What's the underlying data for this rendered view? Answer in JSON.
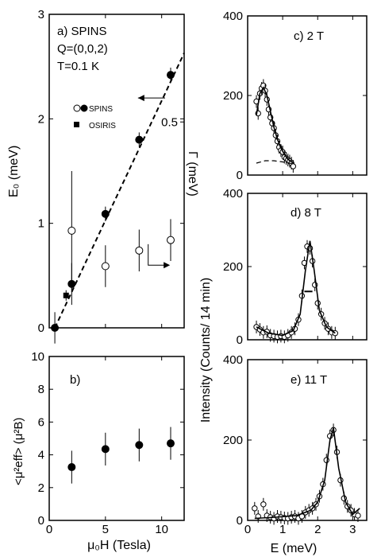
{
  "chart_data": [
    {
      "type": "scatter",
      "panel": "a",
      "annotations": [
        "a) SPINS",
        "Q=(0,0,2)",
        "T=0.1 K"
      ],
      "ylabel": "E₀ (meV)",
      "ylabel_right": "Γ (meV)",
      "ylim": [
        0,
        3
      ],
      "yticks": [
        "0",
        "1",
        "2",
        "3"
      ],
      "xlim": [
        0,
        12
      ],
      "xticks": [
        0,
        5,
        10
      ],
      "right_axis_ticks": [
        {
          "label": "0.5",
          "at_left_value": 1.97
        }
      ],
      "legend": [
        {
          "label": "SPINS",
          "markers": [
            "open-circle",
            "filled-circle"
          ]
        },
        {
          "label": "OSIRIS",
          "markers": [
            "filled-square"
          ]
        }
      ],
      "series": [
        {
          "marker": "filled-circle",
          "axis": "left",
          "points": [
            {
              "x": 0.5,
              "y": 0.0,
              "err": 0.15
            },
            {
              "x": 2,
              "y": 0.42,
              "err": 0.2
            },
            {
              "x": 5,
              "y": 1.09,
              "err": 0.07
            },
            {
              "x": 8,
              "y": 1.8,
              "err": 0.07
            },
            {
              "x": 10.8,
              "y": 2.42,
              "err": 0.07
            }
          ]
        },
        {
          "marker": "filled-square",
          "axis": "left",
          "points": [
            {
              "x": 1.5,
              "y": 0.31,
              "err": 0.05
            }
          ]
        },
        {
          "marker": "open-circle",
          "axis": "right",
          "points": [
            {
              "x": 2,
              "y": 0.93,
              "err": 0.57
            },
            {
              "x": 5,
              "y": 0.59,
              "err": 0.2
            },
            {
              "x": 8,
              "y": 0.74,
              "err": 0.2
            },
            {
              "x": 10.8,
              "y": 0.84,
              "err": 0.2
            }
          ]
        }
      ],
      "fit_line": {
        "style": "dashed",
        "x": [
          0.5,
          12
        ],
        "y": [
          0.0,
          2.63
        ]
      }
    },
    {
      "type": "scatter",
      "panel": "b",
      "annotations": [
        "b)"
      ],
      "ylabel": "<μ²eff> (μ²B)",
      "xlabel": "μ₀H (Tesla)",
      "ylim": [
        0,
        10
      ],
      "yticks": [
        "0",
        "2",
        "4",
        "6",
        "8",
        "10"
      ],
      "xlim": [
        0,
        12
      ],
      "xticks": [
        "0",
        "5",
        "10"
      ],
      "series": [
        {
          "marker": "filled-circle",
          "points": [
            {
              "x": 2,
              "y": 3.25,
              "err": 1.0
            },
            {
              "x": 5,
              "y": 4.35,
              "err": 1.0
            },
            {
              "x": 8,
              "y": 4.6,
              "err": 1.0
            },
            {
              "x": 10.8,
              "y": 4.7,
              "err": 1.0
            }
          ]
        }
      ]
    },
    {
      "type": "scatter",
      "panel": "c",
      "annotations": [
        "c) 2 T"
      ],
      "ylim": [
        0,
        400
      ],
      "yticks": [
        "0",
        "200",
        "400"
      ],
      "xlim": [
        0,
        3.4
      ],
      "series": [
        {
          "marker": "open-circle",
          "x": [
            0.25,
            0.3,
            0.35,
            0.4,
            0.45,
            0.5,
            0.55,
            0.6,
            0.65,
            0.7,
            0.75,
            0.8,
            0.85,
            0.9,
            0.95,
            1.0,
            1.05,
            1.1,
            1.15,
            1.2,
            1.25,
            1.3
          ],
          "y": [
            185,
            155,
            205,
            218,
            225,
            212,
            190,
            165,
            145,
            130,
            118,
            100,
            85,
            70,
            62,
            58,
            45,
            42,
            38,
            35,
            30,
            22
          ]
        }
      ],
      "fit_line": {
        "style": "solid",
        "x": [
          0.25,
          0.35,
          0.45,
          0.55,
          0.65,
          0.75,
          0.85,
          0.95,
          1.05,
          1.15,
          1.3
        ],
        "y": [
          150,
          205,
          220,
          200,
          160,
          120,
          90,
          68,
          52,
          40,
          30
        ]
      },
      "background_line": {
        "style": "dashed",
        "x": [
          0.25,
          0.5,
          0.75,
          1.0,
          1.3
        ],
        "y": [
          30,
          36,
          36,
          33,
          28
        ]
      }
    },
    {
      "type": "scatter",
      "panel": "d",
      "annotations": [
        "d) 8 T"
      ],
      "ylabel": "Intensity (Counts/ 14 min)",
      "ylim": [
        0,
        400
      ],
      "yticks": [
        "0",
        "200",
        "400"
      ],
      "xlim": [
        0,
        3.4
      ],
      "series": [
        {
          "marker": "open-circle",
          "x": [
            0.25,
            0.35,
            0.45,
            0.55,
            0.65,
            0.75,
            0.85,
            0.95,
            1.05,
            1.15,
            1.25,
            1.35,
            1.45,
            1.55,
            1.62,
            1.7,
            1.78,
            1.85,
            1.92,
            2.0,
            2.1,
            2.2,
            2.3,
            2.4,
            2.5
          ],
          "y": [
            35,
            28,
            20,
            22,
            12,
            10,
            8,
            10,
            8,
            12,
            20,
            30,
            55,
            120,
            210,
            255,
            250,
            215,
            150,
            100,
            70,
            45,
            30,
            20,
            18
          ]
        }
      ],
      "fit_line": {
        "style": "solid",
        "x": [
          0.25,
          0.6,
          1.0,
          1.3,
          1.5,
          1.65,
          1.78,
          1.9,
          2.05,
          2.25,
          2.5
        ],
        "y": [
          35,
          18,
          12,
          25,
          70,
          190,
          270,
          190,
          80,
          35,
          18
        ]
      },
      "resolution_bar": {
        "x": [
          1.62,
          1.85
        ],
        "y": 132
      }
    },
    {
      "type": "scatter",
      "panel": "e",
      "annotations": [
        "e) 11 T"
      ],
      "xlabel": "E (meV)",
      "ylim": [
        0,
        400
      ],
      "yticks": [
        "0",
        "200",
        "400"
      ],
      "xlim": [
        0,
        3.4
      ],
      "xticks": [
        "0",
        "1",
        "2",
        "3"
      ],
      "series": [
        {
          "marker": "open-circle",
          "x": [
            0.2,
            0.3,
            0.45,
            0.55,
            0.65,
            0.75,
            0.85,
            0.95,
            1.05,
            1.15,
            1.25,
            1.35,
            1.45,
            1.55,
            1.65,
            1.75,
            1.85,
            1.95,
            2.05,
            2.15,
            2.25,
            2.35,
            2.45,
            2.55,
            2.65,
            2.75,
            2.85,
            2.95,
            3.05,
            3.15
          ],
          "y": [
            30,
            10,
            40,
            12,
            8,
            5,
            10,
            8,
            6,
            5,
            8,
            10,
            5,
            10,
            20,
            25,
            30,
            40,
            60,
            90,
            150,
            210,
            225,
            170,
            100,
            55,
            35,
            25,
            15,
            12
          ]
        }
      ],
      "fit_line": {
        "style": "solid",
        "x": [
          0.2,
          0.8,
          1.4,
          1.8,
          2.0,
          2.2,
          2.35,
          2.45,
          2.6,
          2.8,
          3.0,
          3.2
        ],
        "y": [
          5,
          8,
          12,
          25,
          45,
          100,
          200,
          230,
          130,
          45,
          15,
          30
        ]
      }
    }
  ]
}
